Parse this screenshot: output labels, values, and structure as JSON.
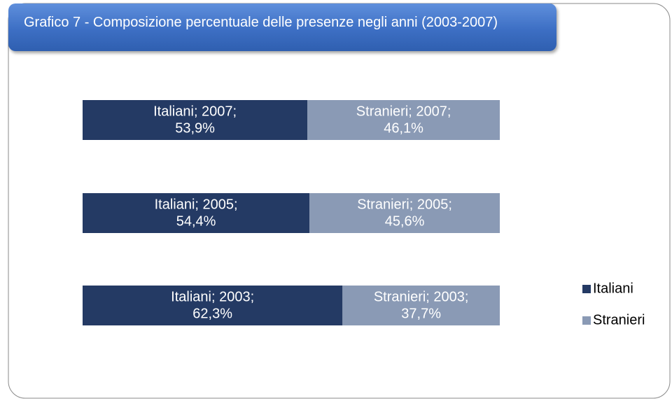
{
  "chart_data": {
    "type": "stacked-bar-horizontal",
    "title": "Grafico 7 - Composizione percentuale delle presenze negli anni (2003-2007)",
    "xlim": [
      0,
      100
    ],
    "legend": "right",
    "series": [
      {
        "name": "Italiani",
        "color": "#243a64",
        "values": [
          53.9,
          54.4,
          62.3
        ],
        "value_labels": [
          [
            "Italiani; 2007;",
            "53,9%"
          ],
          [
            "Italiani; 2005;",
            "54,4%"
          ],
          [
            "Italiani; 2003;",
            "62,3%"
          ]
        ]
      },
      {
        "name": "Stranieri",
        "color": "#8a9ab5",
        "values": [
          46.1,
          45.6,
          37.7
        ],
        "value_labels": [
          [
            "Stranieri; 2007;",
            "46,1%"
          ],
          [
            "Stranieri; 2005;",
            "45,6%"
          ],
          [
            "Stranieri; 2003;",
            "37,7%"
          ]
        ]
      }
    ]
  }
}
